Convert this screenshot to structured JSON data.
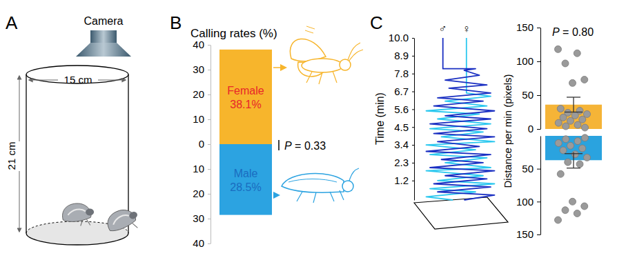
{
  "diagram": {
    "label": "A",
    "camera": "Camera",
    "width": "15 cm",
    "height": "21 cm"
  },
  "chart_data": [
    {
      "type": "bar",
      "panel_label": "B",
      "title": "Calling rates (%)",
      "categories": [
        "Female",
        "Male"
      ],
      "values": [
        38.1,
        28.5
      ],
      "value_labels": [
        "38.1%",
        "28.5%"
      ],
      "colors": [
        "#f7b52c",
        "#2ca3e1"
      ],
      "ylim": [
        0,
        40
      ],
      "yticks": [
        0,
        10,
        20,
        30,
        40
      ],
      "data_labels": true,
      "annotations": [
        "P = 0.33"
      ]
    },
    {
      "type": "line",
      "panel_label": "C",
      "ylabel": "Time (min)",
      "xlim": [
        0,
        1
      ],
      "ylim": [
        0,
        10
      ],
      "yticks": [
        1.2,
        2.3,
        3.4,
        4.5,
        5.6,
        6.7,
        7.8,
        8.9,
        {
          "value": 10,
          "label": "10.0"
        }
      ],
      "tick_labels": "y",
      "series": [
        {
          "name": "♀",
          "color": "#2bc8ef",
          "x": [
            0.4,
            0.05,
            0.7,
            0.1,
            0.95,
            0.2,
            0.8,
            0.05,
            0.9,
            0.3,
            0.85,
            0.1,
            0.7,
            0.05,
            0.95,
            0.25,
            0.8,
            0.1,
            0.9,
            0.2,
            0.75,
            0.05,
            0.85,
            0.3,
            0.9,
            0.58,
            0.58
          ],
          "values": [
            0,
            0.2,
            0.5,
            0.7,
            1.0,
            1.2,
            1.5,
            1.8,
            2.0,
            2.3,
            2.6,
            2.8,
            3.1,
            3.4,
            3.6,
            3.9,
            4.2,
            4.4,
            4.7,
            5.0,
            5.3,
            5.5,
            5.8,
            6.1,
            6.4,
            6.6,
            10.0
          ]
        },
        {
          "name": "♂",
          "color": "#1a2fc2",
          "x": [
            0.55,
            0.95,
            0.2,
            0.9,
            0.15,
            0.85,
            0.3,
            0.95,
            0.1,
            0.8,
            0.25,
            0.9,
            0.05,
            0.75,
            0.2,
            0.95,
            0.15,
            0.85,
            0.1,
            0.9,
            0.3,
            0.95,
            0.15,
            0.8,
            0.2,
            0.9,
            0.35,
            0.85,
            0.3,
            0.75,
            0.55,
            0.7,
            0.27,
            0.27
          ],
          "values": [
            0,
            0.3,
            0.5,
            0.8,
            1.0,
            1.3,
            1.5,
            1.8,
            2.0,
            2.3,
            2.5,
            2.8,
            3.0,
            3.3,
            3.6,
            3.9,
            4.1,
            4.4,
            4.7,
            5.0,
            5.2,
            5.5,
            5.8,
            6.1,
            6.3,
            6.6,
            6.9,
            7.1,
            7.4,
            7.7,
            8.0,
            8.1,
            8.1,
            10.0
          ]
        }
      ]
    },
    {
      "type": "bar",
      "ylabel": "Distance per min (pixels)",
      "values": [
        36,
        37
      ],
      "errors": [
        11,
        12
      ],
      "medians": [
        25,
        27
      ],
      "colors": [
        "#f5b437",
        "#2aa3df"
      ],
      "points": [
        [
          118,
          112,
          97,
          73,
          68,
          30,
          27,
          24,
          22,
          20,
          17,
          14,
          12,
          9,
          6,
          4,
          2
        ],
        [
          128,
          118,
          113,
          107,
          100,
          58,
          43,
          40,
          33,
          28,
          22,
          19,
          15,
          11,
          8,
          5,
          3
        ]
      ],
      "ylim": [
        0,
        150
      ],
      "yticks": [
        0,
        50,
        100,
        150
      ],
      "tick_labels": "y",
      "annotations": [
        "P = 0.80"
      ]
    }
  ]
}
